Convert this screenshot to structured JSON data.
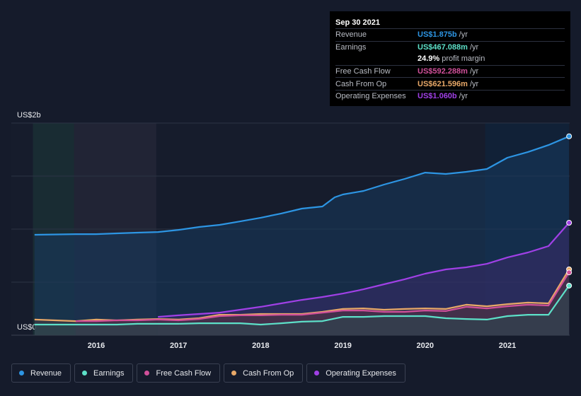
{
  "chart_data": {
    "type": "area",
    "y_axis": {
      "top_label": "US$2b",
      "bottom_label": "US$0",
      "ylim": [
        0,
        2
      ]
    },
    "x_ticks": [
      2016,
      2017,
      2018,
      2019,
      2020,
      2021
    ],
    "xlim": [
      2015.23,
      2021.75
    ],
    "shading": [
      {
        "x0": 2015.23,
        "x1": 2015.73,
        "color": "#1d3a3a"
      },
      {
        "x0": 2015.73,
        "x1": 2016.73,
        "color": "#2b2c3e"
      },
      {
        "x0": 2020.73,
        "x1": 2021.75,
        "color": "#0f2742"
      }
    ],
    "series": [
      {
        "name": "Revenue",
        "color": "#2d95e3",
        "fill": "#173a5e",
        "points": [
          [
            2015.25,
            0.947
          ],
          [
            2015.75,
            0.953
          ],
          [
            2016.0,
            0.953
          ],
          [
            2016.25,
            0.96
          ],
          [
            2016.5,
            0.967
          ],
          [
            2016.75,
            0.973
          ],
          [
            2017.0,
            0.993
          ],
          [
            2017.25,
            1.02
          ],
          [
            2017.5,
            1.04
          ],
          [
            2017.75,
            1.073
          ],
          [
            2018.0,
            1.107
          ],
          [
            2018.25,
            1.147
          ],
          [
            2018.5,
            1.193
          ],
          [
            2018.75,
            1.213
          ],
          [
            2018.9,
            1.3
          ],
          [
            2019.0,
            1.327
          ],
          [
            2019.25,
            1.36
          ],
          [
            2019.5,
            1.42
          ],
          [
            2019.75,
            1.473
          ],
          [
            2020.0,
            1.533
          ],
          [
            2020.25,
            1.52
          ],
          [
            2020.5,
            1.54
          ],
          [
            2020.75,
            1.567
          ],
          [
            2021.0,
            1.673
          ],
          [
            2021.25,
            1.727
          ],
          [
            2021.5,
            1.793
          ],
          [
            2021.75,
            1.875
          ]
        ]
      },
      {
        "name": "Operating Expenses",
        "color": "#a040e6",
        "fill": "#3a2b6a",
        "points": [
          [
            2016.75,
            0.173
          ],
          [
            2017.0,
            0.187
          ],
          [
            2017.25,
            0.2
          ],
          [
            2017.5,
            0.213
          ],
          [
            2017.75,
            0.24
          ],
          [
            2018.0,
            0.267
          ],
          [
            2018.25,
            0.3
          ],
          [
            2018.5,
            0.333
          ],
          [
            2018.75,
            0.36
          ],
          [
            2019.0,
            0.393
          ],
          [
            2019.25,
            0.433
          ],
          [
            2019.5,
            0.48
          ],
          [
            2019.75,
            0.527
          ],
          [
            2020.0,
            0.58
          ],
          [
            2020.25,
            0.62
          ],
          [
            2020.5,
            0.64
          ],
          [
            2020.75,
            0.673
          ],
          [
            2021.0,
            0.733
          ],
          [
            2021.25,
            0.78
          ],
          [
            2021.5,
            0.84
          ],
          [
            2021.75,
            1.06
          ]
        ]
      },
      {
        "name": "Cash From Op",
        "color": "#e8a868",
        "fill": "#4a3d44",
        "points": [
          [
            2015.25,
            0.147
          ],
          [
            2015.5,
            0.14
          ],
          [
            2015.75,
            0.133
          ],
          [
            2016.0,
            0.147
          ],
          [
            2016.25,
            0.14
          ],
          [
            2016.5,
            0.147
          ],
          [
            2016.75,
            0.153
          ],
          [
            2017.0,
            0.147
          ],
          [
            2017.25,
            0.16
          ],
          [
            2017.5,
            0.193
          ],
          [
            2017.75,
            0.193
          ],
          [
            2018.0,
            0.2
          ],
          [
            2018.25,
            0.2
          ],
          [
            2018.5,
            0.2
          ],
          [
            2018.75,
            0.22
          ],
          [
            2019.0,
            0.247
          ],
          [
            2019.25,
            0.253
          ],
          [
            2019.5,
            0.24
          ],
          [
            2019.75,
            0.247
          ],
          [
            2020.0,
            0.253
          ],
          [
            2020.25,
            0.247
          ],
          [
            2020.5,
            0.287
          ],
          [
            2020.75,
            0.273
          ],
          [
            2021.0,
            0.293
          ],
          [
            2021.25,
            0.307
          ],
          [
            2021.5,
            0.3
          ],
          [
            2021.75,
            0.621
          ]
        ]
      },
      {
        "name": "Free Cash Flow",
        "color": "#d0509a",
        "fill": "#4a2c48",
        "points": [
          [
            2015.75,
            0.133
          ],
          [
            2016.0,
            0.133
          ],
          [
            2016.25,
            0.14
          ],
          [
            2016.5,
            0.14
          ],
          [
            2016.75,
            0.147
          ],
          [
            2017.0,
            0.14
          ],
          [
            2017.25,
            0.153
          ],
          [
            2017.5,
            0.18
          ],
          [
            2017.75,
            0.187
          ],
          [
            2018.0,
            0.187
          ],
          [
            2018.25,
            0.193
          ],
          [
            2018.5,
            0.193
          ],
          [
            2018.75,
            0.213
          ],
          [
            2019.0,
            0.233
          ],
          [
            2019.25,
            0.233
          ],
          [
            2019.5,
            0.22
          ],
          [
            2019.75,
            0.22
          ],
          [
            2020.0,
            0.233
          ],
          [
            2020.25,
            0.227
          ],
          [
            2020.5,
            0.267
          ],
          [
            2020.75,
            0.253
          ],
          [
            2021.0,
            0.273
          ],
          [
            2021.25,
            0.287
          ],
          [
            2021.5,
            0.28
          ],
          [
            2021.75,
            0.592
          ]
        ]
      },
      {
        "name": "Earnings",
        "color": "#5de0c8",
        "fill": "#2a4850",
        "points": [
          [
            2015.25,
            0.1
          ],
          [
            2015.75,
            0.1
          ],
          [
            2016.0,
            0.1
          ],
          [
            2016.25,
            0.1
          ],
          [
            2016.5,
            0.107
          ],
          [
            2016.75,
            0.107
          ],
          [
            2017.0,
            0.107
          ],
          [
            2017.25,
            0.113
          ],
          [
            2017.5,
            0.113
          ],
          [
            2017.75,
            0.113
          ],
          [
            2018.0,
            0.1
          ],
          [
            2018.25,
            0.113
          ],
          [
            2018.5,
            0.127
          ],
          [
            2018.75,
            0.133
          ],
          [
            2019.0,
            0.173
          ],
          [
            2019.25,
            0.173
          ],
          [
            2019.5,
            0.18
          ],
          [
            2019.75,
            0.18
          ],
          [
            2020.0,
            0.18
          ],
          [
            2020.25,
            0.16
          ],
          [
            2020.5,
            0.153
          ],
          [
            2020.75,
            0.147
          ],
          [
            2021.0,
            0.18
          ],
          [
            2021.25,
            0.193
          ],
          [
            2021.5,
            0.193
          ],
          [
            2021.75,
            0.467
          ]
        ]
      }
    ]
  },
  "tooltip": {
    "date": "Sep 30 2021",
    "rows": [
      {
        "label": "Revenue",
        "value": "US$1.875b",
        "unit": "/yr",
        "color": "#2d95e3"
      },
      {
        "label": "Earnings",
        "value": "US$467.088m",
        "unit": "/yr",
        "color": "#5de0c8"
      },
      {
        "label": "",
        "value": "24.9%",
        "unit": "profit margin",
        "color": "#ffffff"
      },
      {
        "label": "Free Cash Flow",
        "value": "US$592.288m",
        "unit": "/yr",
        "color": "#d0509a"
      },
      {
        "label": "Cash From Op",
        "value": "US$621.596m",
        "unit": "/yr",
        "color": "#e8a868"
      },
      {
        "label": "Operating Expenses",
        "value": "US$1.060b",
        "unit": "/yr",
        "color": "#a040e6"
      }
    ]
  },
  "legend": [
    {
      "label": "Revenue",
      "color": "#2d95e3"
    },
    {
      "label": "Earnings",
      "color": "#5de0c8"
    },
    {
      "label": "Free Cash Flow",
      "color": "#d0509a"
    },
    {
      "label": "Cash From Op",
      "color": "#e8a868"
    },
    {
      "label": "Operating Expenses",
      "color": "#a040e6"
    }
  ]
}
